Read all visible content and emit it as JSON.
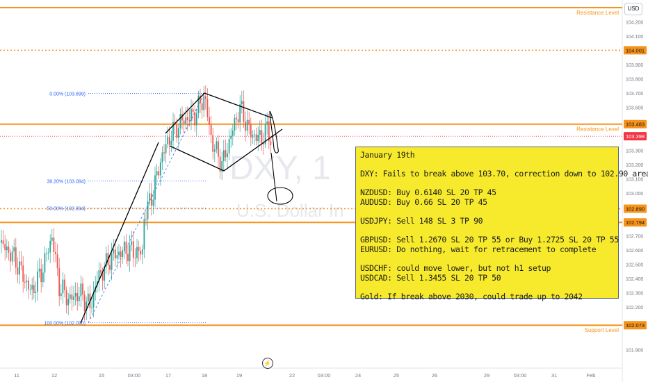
{
  "chart_data": {
    "type": "candlestick",
    "symbol_watermark": "DXY, 1",
    "symbol_description_watermark": "U.S. Dollar In",
    "currency": "USD",
    "y_axis": {
      "min": 101.85,
      "max": 104.3,
      "ticks": [
        "104.200",
        "104.100",
        "104.001",
        "103.900",
        "103.800",
        "103.700",
        "103.600",
        "103.483",
        "103.398",
        "103.300",
        "103.200",
        "103.100",
        "103.000",
        "102.890",
        "102.794",
        "102.700",
        "102.600",
        "102.500",
        "102.400",
        "102.300",
        "102.200",
        "102.073",
        "101.900"
      ]
    },
    "x_axis": {
      "labels": [
        "11",
        "12",
        "15",
        "03:00",
        "17",
        "18",
        "19",
        "22",
        "03:00",
        "24",
        "25",
        "26",
        "29",
        "03:00",
        "31",
        "Feb"
      ]
    },
    "price_badges": [
      {
        "label": "104.001",
        "value": 104.001,
        "style": "orange"
      },
      {
        "label": "103.483",
        "value": 103.483,
        "style": "orange"
      },
      {
        "label": "103.398",
        "value": 103.398,
        "style": "red"
      },
      {
        "label": "102.890",
        "value": 102.89,
        "style": "orange"
      },
      {
        "label": "102.794",
        "value": 102.794,
        "style": "orange"
      },
      {
        "label": "102.073",
        "value": 102.073,
        "style": "orange"
      }
    ],
    "horizontal_levels": [
      {
        "value": 104.3,
        "style": "solid",
        "label": "Resistance Level"
      },
      {
        "value": 104.001,
        "style": "dotted",
        "label": ""
      },
      {
        "value": 103.483,
        "style": "solid",
        "label": "Resistance Level"
      },
      {
        "value": 102.89,
        "style": "dotted",
        "label": ""
      },
      {
        "value": 102.794,
        "style": "solid",
        "label": "Support Level"
      },
      {
        "value": 102.073,
        "style": "solid",
        "label": "Support Level"
      }
    ],
    "current_price": 103.398,
    "fibonacci": [
      {
        "label": "0.00% (103.699)",
        "value": 103.699
      },
      {
        "label": "38.20% (103.084)",
        "value": 103.084
      },
      {
        "label": "50.00% (102.894)",
        "value": 102.894
      },
      {
        "label": "100.00% (102.090)",
        "value": 102.09
      }
    ],
    "colors": {
      "up": "#26a69a",
      "down": "#ef5350",
      "level": "#f7931a",
      "price_red": "#f23645",
      "fib_blue": "#2962ff",
      "note_bg": "#f7ea2c"
    }
  },
  "note": {
    "lines": [
      "January 19th",
      "",
      "DXY: Fails to break above 103.70, correction down to 102.90 area.",
      "",
      "NZDUSD: Buy 0.6140 SL 20 TP 45",
      "AUDUSD: Buy 0.66 SL 20 TP 45",
      "",
      "USDJPY: Sell 148 SL 3 TP 90",
      "",
      "GBPUSD: Sell 1.2670 SL 20 TP 55 or Buy 1.2725 SL 20 TP 55",
      "EURUSD: Do nothing, wait for retracement to complete",
      "",
      "USDCHF: could move lower, but not h1 setup",
      "USDCAD: Sell 1.3455 SL 20 TP 50",
      "",
      "Gold: If break above 2030, could trade up to 2042"
    ]
  }
}
